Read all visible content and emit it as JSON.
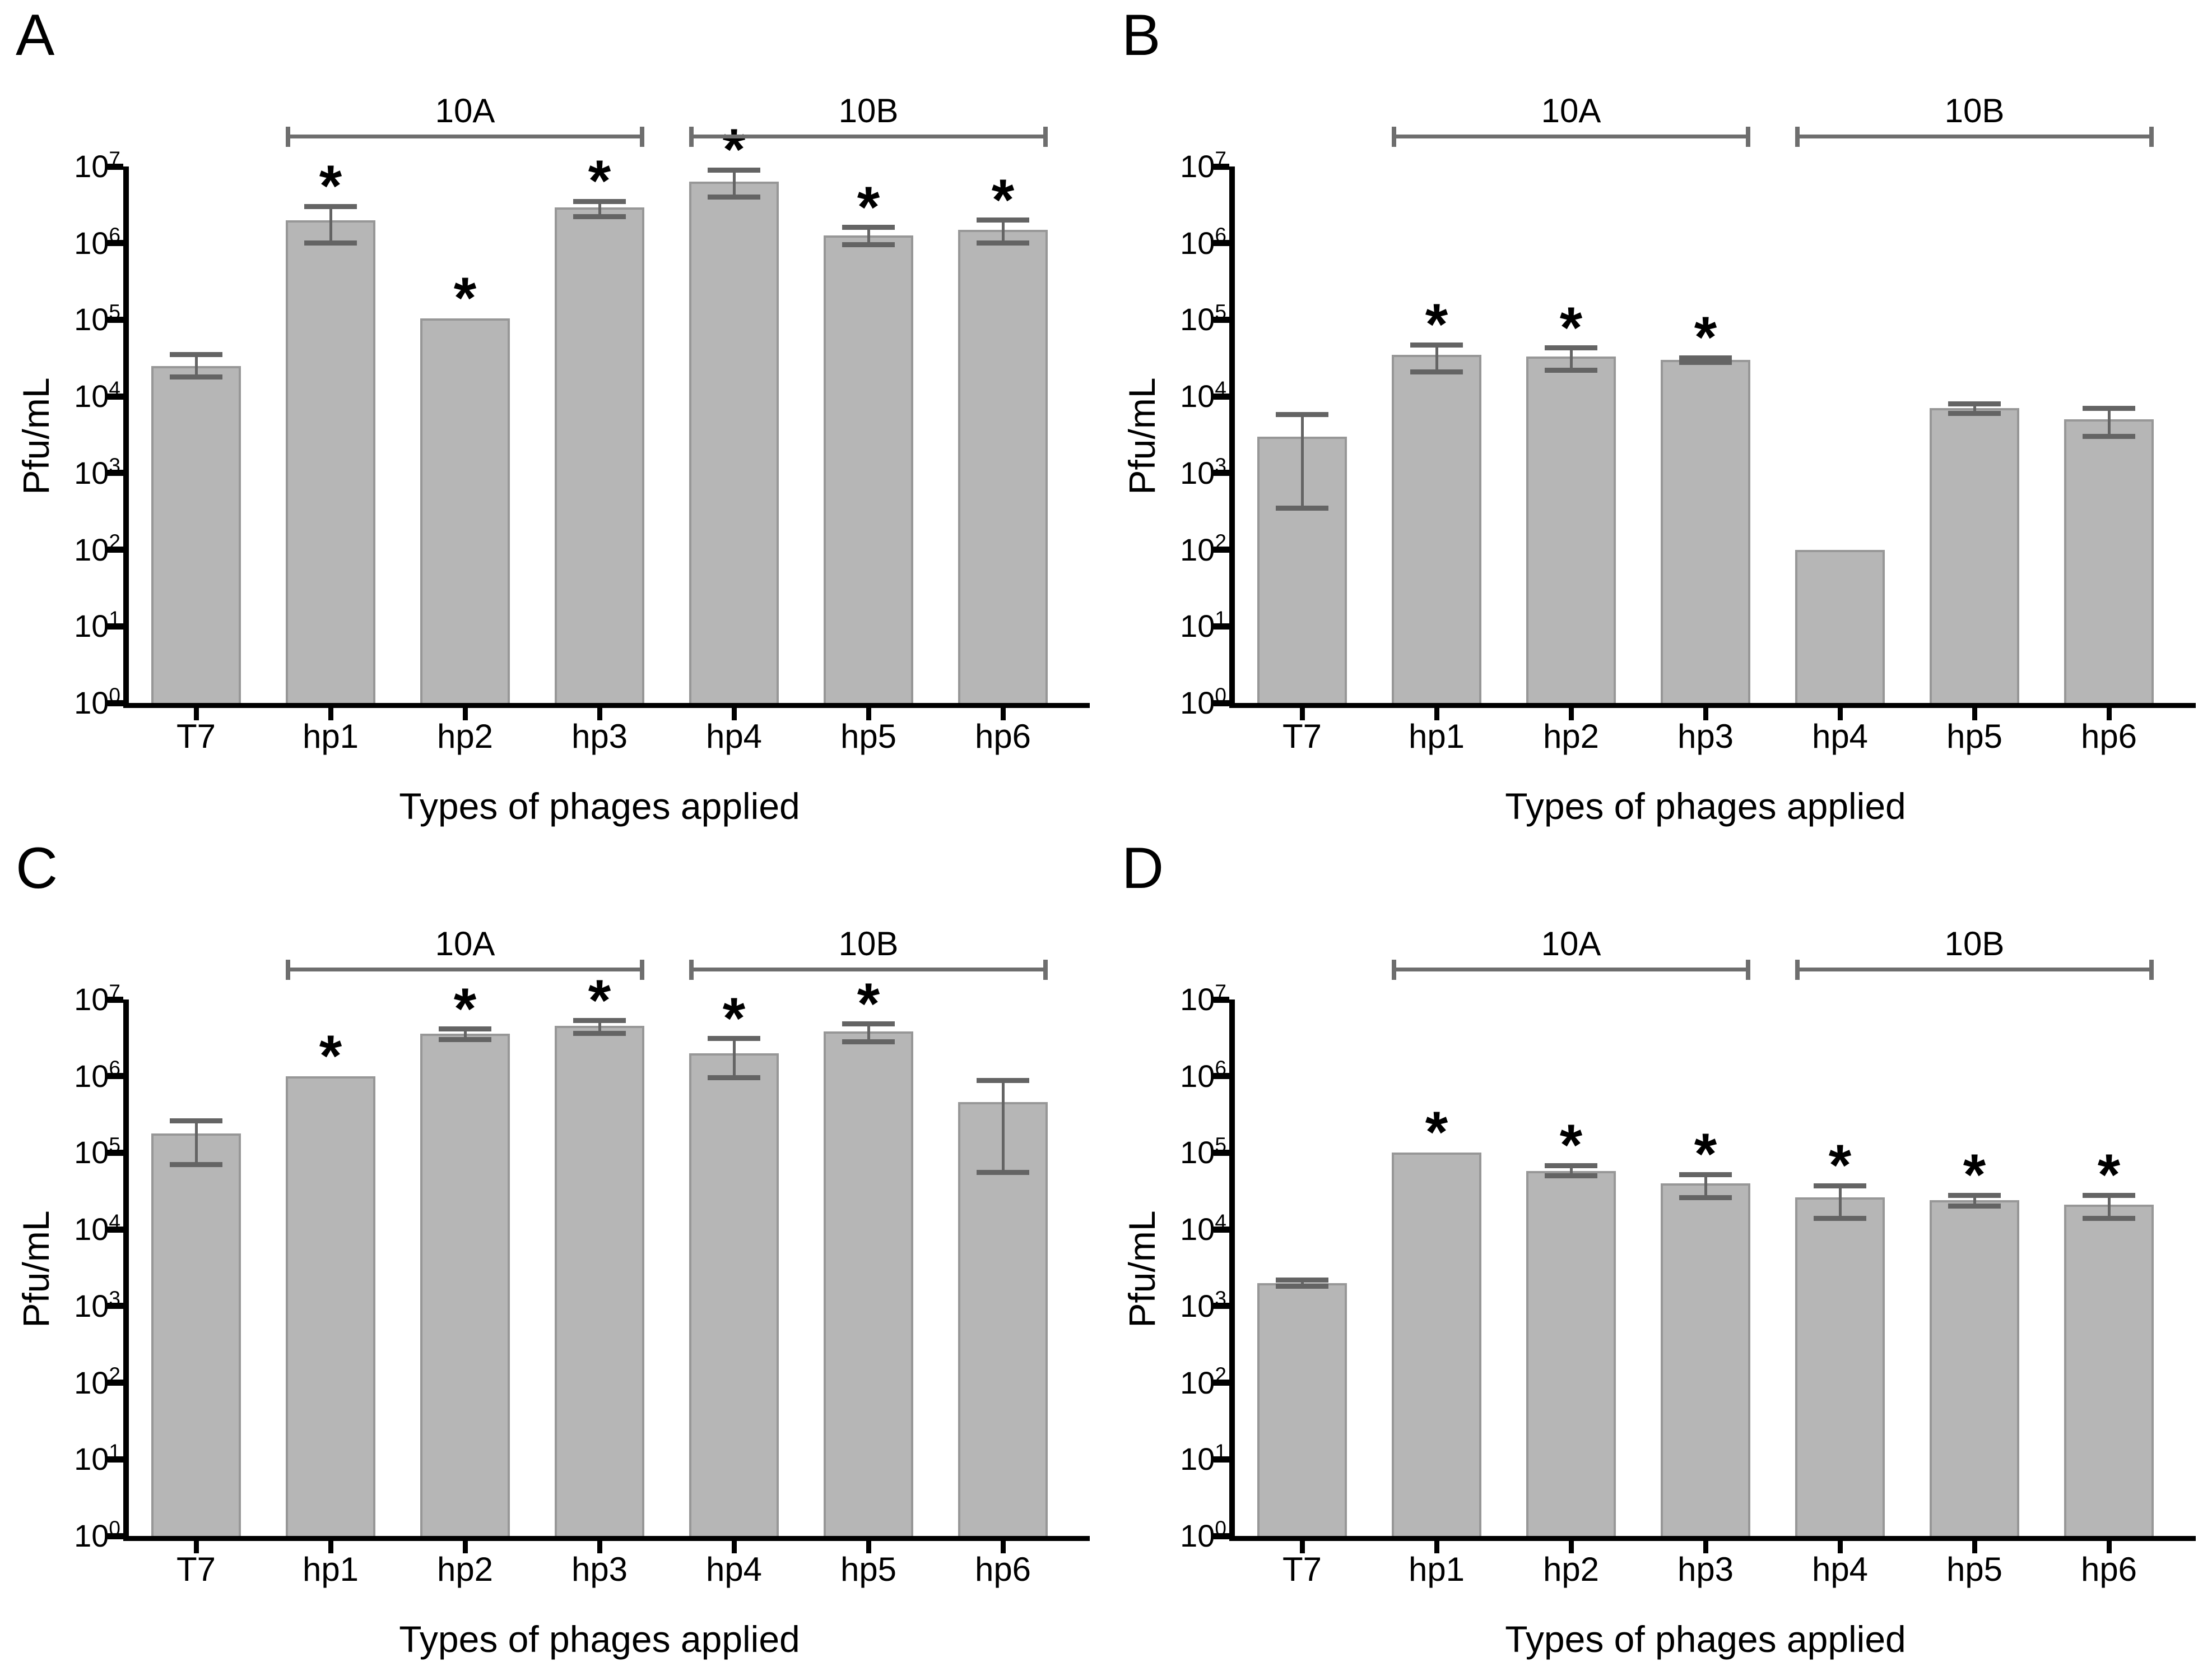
{
  "style": {
    "bar_fill": "#b6b6b6",
    "bar_border": "#979797",
    "error_color": "#646464",
    "bracket_color": "#6e6e6e",
    "axis_color": "#000000",
    "text_color": "#000000",
    "background": "#ffffff",
    "sig_marker": "*"
  },
  "axis": {
    "ytick_base": "10"
  },
  "chart_data": [
    {
      "type": "bar",
      "panel_label": "A",
      "ylabel": "Pfu/mL",
      "xlabel": "Types of phages applied",
      "yscale": "log",
      "ylim": [
        1,
        10000000
      ],
      "ytick_exponents": [
        0,
        1,
        2,
        3,
        4,
        5,
        6,
        7
      ],
      "grid": false,
      "categories": [
        "T7",
        "hp1",
        "hp2",
        "hp3",
        "hp4",
        "hp5",
        "hp6"
      ],
      "values": [
        25000.0,
        2000000.0,
        105000.0,
        2900000.0,
        6300000.0,
        1250000.0,
        1500000.0
      ],
      "error_low": [
        18000.0,
        1000000.0,
        null,
        2200000.0,
        4000000.0,
        950000.0,
        1000000.0
      ],
      "error_high": [
        35000.0,
        3000000.0,
        null,
        3500000.0,
        9000000.0,
        1600000.0,
        2000000.0
      ],
      "significant": [
        false,
        true,
        true,
        true,
        true,
        true,
        true
      ],
      "group_brackets": [
        {
          "label": "10A",
          "from": "hp1",
          "to": "hp3"
        },
        {
          "label": "10B",
          "from": "hp4",
          "to": "hp6"
        }
      ]
    },
    {
      "type": "bar",
      "panel_label": "B",
      "ylabel": "Pfu/mL",
      "xlabel": "Types of phages applied",
      "yscale": "log",
      "ylim": [
        1,
        10000000
      ],
      "ytick_exponents": [
        0,
        1,
        2,
        3,
        4,
        5,
        6,
        7
      ],
      "grid": false,
      "categories": [
        "T7",
        "hp1",
        "hp2",
        "hp3",
        "hp4",
        "hp5",
        "hp6"
      ],
      "values": [
        3000.0,
        35000.0,
        33000.0,
        30000.0,
        100.0,
        7000.0,
        5000.0
      ],
      "error_low": [
        350.0,
        21000.0,
        22000.0,
        28000.0,
        null,
        6000.0,
        3000.0
      ],
      "error_high": [
        5800.0,
        47000.0,
        43000.0,
        32000.0,
        null,
        8000.0,
        7000.0
      ],
      "significant": [
        false,
        true,
        true,
        true,
        false,
        false,
        false
      ],
      "group_brackets": [
        {
          "label": "10A",
          "from": "hp1",
          "to": "hp3"
        },
        {
          "label": "10B",
          "from": "hp4",
          "to": "hp6"
        }
      ]
    },
    {
      "type": "bar",
      "panel_label": "C",
      "ylabel": "Pfu/mL",
      "xlabel": "Types of phages applied",
      "yscale": "log",
      "ylim": [
        1,
        10000000
      ],
      "ytick_exponents": [
        0,
        1,
        2,
        3,
        4,
        5,
        6,
        7
      ],
      "grid": false,
      "categories": [
        "T7",
        "hp1",
        "hp2",
        "hp3",
        "hp4",
        "hp5",
        "hp6"
      ],
      "values": [
        180000.0,
        1000000.0,
        3600000.0,
        4500000.0,
        2000000.0,
        3800000.0,
        460000.0
      ],
      "error_low": [
        70000.0,
        null,
        3000000.0,
        3600000.0,
        950000.0,
        2800000.0,
        55000.0
      ],
      "error_high": [
        260000.0,
        null,
        4100000.0,
        5300000.0,
        3100000.0,
        4800000.0,
        880000.0
      ],
      "significant": [
        false,
        true,
        true,
        true,
        true,
        true,
        false
      ],
      "group_brackets": [
        {
          "label": "10A",
          "from": "hp1",
          "to": "hp3"
        },
        {
          "label": "10B",
          "from": "hp4",
          "to": "hp6"
        }
      ]
    },
    {
      "type": "bar",
      "panel_label": "D",
      "ylabel": "Pfu/mL",
      "xlabel": "Types of phages applied",
      "yscale": "log",
      "ylim": [
        1,
        10000000
      ],
      "ytick_exponents": [
        0,
        1,
        2,
        3,
        4,
        5,
        6,
        7
      ],
      "grid": false,
      "categories": [
        "T7",
        "hp1",
        "hp2",
        "hp3",
        "hp4",
        "hp5",
        "hp6"
      ],
      "values": [
        2000.0,
        100000.0,
        58000.0,
        40000.0,
        26000.0,
        24000.0,
        21000.0
      ],
      "error_low": [
        1800.0,
        null,
        50000.0,
        26000.0,
        14000.0,
        20000.0,
        14000.0
      ],
      "error_high": [
        2200.0,
        null,
        68000.0,
        52000.0,
        37000.0,
        28000.0,
        28000.0
      ],
      "significant": [
        false,
        true,
        true,
        true,
        true,
        true,
        true
      ],
      "group_brackets": [
        {
          "label": "10A",
          "from": "hp1",
          "to": "hp3"
        },
        {
          "label": "10B",
          "from": "hp4",
          "to": "hp6"
        }
      ]
    }
  ]
}
